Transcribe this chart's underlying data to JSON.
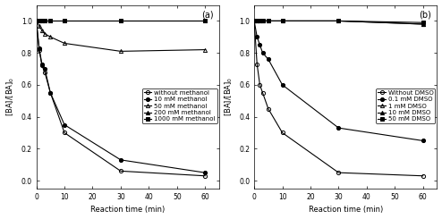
{
  "panel_a": {
    "title": "(a)",
    "xlabel": "Reaction time (min)",
    "ylabel": "[BA]/[BA]$_0$",
    "xlim": [
      0,
      65
    ],
    "ylim": [
      -0.05,
      1.1
    ],
    "xticks": [
      0,
      10,
      20,
      30,
      40,
      50,
      60
    ],
    "yticks": [
      0.0,
      0.2,
      0.4,
      0.6,
      0.8,
      1.0
    ],
    "series": [
      {
        "label": "without methanol",
        "x": [
          0,
          1,
          2,
          3,
          5,
          10,
          30,
          60
        ],
        "y": [
          1.0,
          0.82,
          0.72,
          0.68,
          0.55,
          0.3,
          0.06,
          0.03
        ],
        "marker": "o",
        "fillstyle": "none",
        "color": "black",
        "linestyle": "-"
      },
      {
        "label": "10 mM methanol",
        "x": [
          0,
          1,
          2,
          3,
          5,
          10,
          30,
          60
        ],
        "y": [
          1.0,
          0.83,
          0.73,
          0.7,
          0.55,
          0.35,
          0.13,
          0.05
        ],
        "marker": "o",
        "fillstyle": "full",
        "color": "black",
        "linestyle": "-"
      },
      {
        "label": "50 mM methanol",
        "x": [
          0,
          1,
          2,
          3,
          5,
          10,
          30,
          60
        ],
        "y": [
          1.0,
          0.97,
          0.94,
          0.92,
          0.9,
          0.86,
          0.81,
          0.82
        ],
        "marker": "^",
        "fillstyle": "none",
        "color": "black",
        "linestyle": "-"
      },
      {
        "label": "200 mM methanol",
        "x": [
          0,
          1,
          2,
          3,
          5,
          10,
          30,
          60
        ],
        "y": [
          1.0,
          1.0,
          1.0,
          1.0,
          1.0,
          1.0,
          1.0,
          1.0
        ],
        "marker": "^",
        "fillstyle": "full",
        "color": "black",
        "linestyle": "-"
      },
      {
        "label": "1000 mM methanol",
        "x": [
          0,
          1,
          2,
          3,
          5,
          10,
          30,
          60
        ],
        "y": [
          1.0,
          1.0,
          1.0,
          1.0,
          1.0,
          1.0,
          1.0,
          1.0
        ],
        "marker": "s",
        "fillstyle": "full",
        "color": "black",
        "linestyle": "-"
      }
    ]
  },
  "panel_b": {
    "title": "(b)",
    "xlabel": "Reaction time (min)",
    "ylabel": "[BA]/[BA]$_0$",
    "xlim": [
      0,
      65
    ],
    "ylim": [
      -0.05,
      1.1
    ],
    "xticks": [
      0,
      10,
      20,
      30,
      40,
      50,
      60
    ],
    "yticks": [
      0.0,
      0.2,
      0.4,
      0.6,
      0.8,
      1.0
    ],
    "series": [
      {
        "label": "Without DMSO",
        "x": [
          0,
          1,
          2,
          3,
          5,
          10,
          30,
          60
        ],
        "y": [
          1.0,
          0.73,
          0.6,
          0.55,
          0.45,
          0.3,
          0.05,
          0.03
        ],
        "marker": "o",
        "fillstyle": "none",
        "color": "black",
        "linestyle": "-"
      },
      {
        "label": "0.1 mM DMSO",
        "x": [
          0,
          1,
          2,
          3,
          5,
          10,
          30,
          60
        ],
        "y": [
          1.0,
          0.9,
          0.85,
          0.8,
          0.76,
          0.6,
          0.33,
          0.25
        ],
        "marker": "o",
        "fillstyle": "full",
        "color": "black",
        "linestyle": "-"
      },
      {
        "label": "1 mM DMSO",
        "x": [
          0,
          1,
          2,
          3,
          5,
          10,
          30,
          60
        ],
        "y": [
          1.0,
          1.0,
          1.0,
          1.0,
          1.0,
          1.0,
          1.0,
          0.98
        ],
        "marker": "^",
        "fillstyle": "none",
        "color": "black",
        "linestyle": "-"
      },
      {
        "label": "10 mM DMSO",
        "x": [
          0,
          1,
          2,
          3,
          5,
          10,
          30,
          60
        ],
        "y": [
          1.0,
          1.0,
          1.0,
          1.0,
          1.0,
          1.0,
          1.0,
          0.98
        ],
        "marker": "^",
        "fillstyle": "full",
        "color": "black",
        "linestyle": "-"
      },
      {
        "label": "50 mM DMSO",
        "x": [
          0,
          1,
          2,
          3,
          5,
          10,
          30,
          60
        ],
        "y": [
          1.0,
          1.0,
          1.0,
          1.0,
          1.0,
          1.0,
          1.0,
          0.99
        ],
        "marker": "s",
        "fillstyle": "full",
        "color": "black",
        "linestyle": "-"
      }
    ]
  },
  "fig_width": 4.94,
  "fig_height": 2.45,
  "dpi": 100,
  "font_size": 6,
  "legend_font_size": 5,
  "title_font_size": 7,
  "marker_size": 3,
  "line_width": 0.8
}
